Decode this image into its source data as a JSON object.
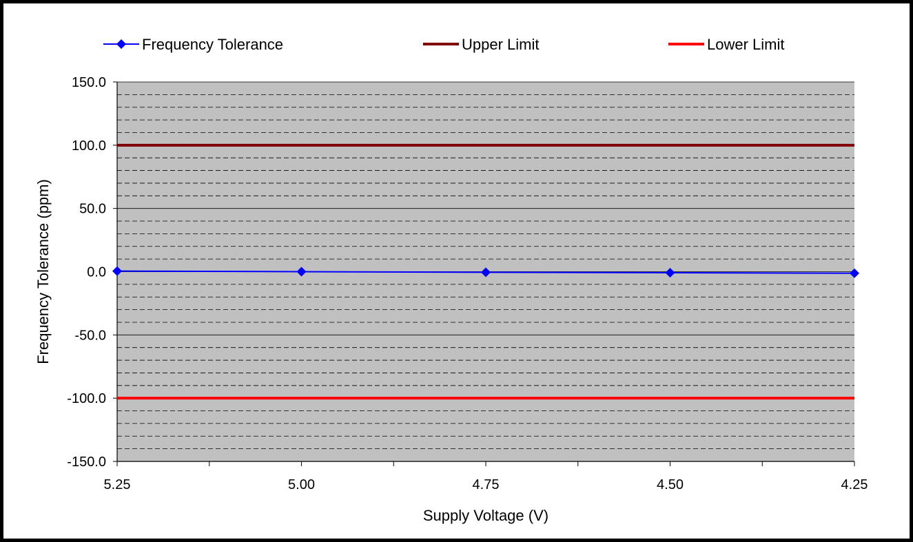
{
  "chart_data": {
    "type": "line",
    "title": "",
    "xlabel": "Supply Voltage (V)",
    "ylabel": "Frequency Tolerance (ppm)",
    "categories": [
      "5.25",
      "5.00",
      "4.75",
      "4.50",
      "4.25"
    ],
    "ylim": [
      -150,
      150
    ],
    "yticks": [
      "150.0",
      "100.0",
      "50.0",
      "0.0",
      "-50.0",
      "-100.0",
      "-150.0"
    ],
    "y_major_step": 50,
    "y_minor_step": 10,
    "grid": true,
    "plot_background": "#c0c0c0",
    "legend_position": "top",
    "series": [
      {
        "name": "Frequency Tolerance",
        "values": [
          0.5,
          0.0,
          -0.5,
          -0.8,
          -1.2
        ],
        "color": "#0000ff",
        "marker": "diamond"
      },
      {
        "name": "Upper Limit",
        "values": [
          100,
          100,
          100,
          100,
          100
        ],
        "color": "#800000",
        "marker": "none"
      },
      {
        "name": "Lower Limit",
        "values": [
          -100,
          -100,
          -100,
          -100,
          -100
        ],
        "color": "#ff0000",
        "marker": "none"
      }
    ]
  }
}
